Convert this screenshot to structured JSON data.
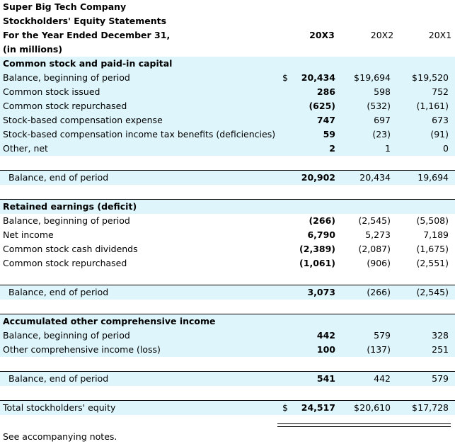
{
  "header": {
    "company": "Super Big Tech Company",
    "statement": "Stockholders' Equity Statements",
    "period": "For the Year Ended December 31,",
    "units": "(in millions)",
    "years": [
      "20X3",
      "20X2",
      "20X1"
    ]
  },
  "currency_symbol": "$",
  "common": {
    "title": "Common stock and paid-in capital",
    "rows": [
      {
        "label": "Balance, beginning of period",
        "v1": "20,434",
        "v2": "19,694",
        "v3": "19,520"
      },
      {
        "label": "Common stock issued",
        "v1": "286",
        "v2": "598",
        "v3": "752"
      },
      {
        "label": "Common stock repurchased",
        "v1": "(625)",
        "v2": "(532)",
        "v3": "(1,161)"
      },
      {
        "label": "Stock-based compensation expense",
        "v1": "747",
        "v2": "697",
        "v3": "673"
      },
      {
        "label": "Stock-based compensation income tax benefits (deficiencies)",
        "v1": "59",
        "v2": "(23)",
        "v3": "(91)"
      },
      {
        "label": "Other, net",
        "v1": "2",
        "v2": "1",
        "v3": "0"
      }
    ],
    "end": {
      "label": "Balance, end of period",
      "v1": "20,902",
      "v2": "20,434",
      "v3": "19,694"
    }
  },
  "retained": {
    "title": "Retained earnings (deficit)",
    "rows": [
      {
        "label": "Balance, beginning of period",
        "v1": "(266)",
        "v2": "(2,545)",
        "v3": "(5,508)"
      },
      {
        "label": "Net income",
        "v1": "6,790",
        "v2": "5,273",
        "v3": "7,189"
      },
      {
        "label": "Common stock cash dividends",
        "v1": "(2,389)",
        "v2": "(2,087)",
        "v3": "(1,675)"
      },
      {
        "label": "Common stock repurchased",
        "v1": "(1,061)",
        "v2": "(906)",
        "v3": "(2,551)"
      }
    ],
    "end": {
      "label": "Balance, end of period",
      "v1": "3,073",
      "v2": "(266)",
      "v3": "(2,545)"
    }
  },
  "aoci": {
    "title": "Accumulated other comprehensive income",
    "rows": [
      {
        "label": "Balance, beginning of period",
        "v1": "442",
        "v2": "579",
        "v3": "328"
      },
      {
        "label": "Other comprehensive income (loss)",
        "v1": "100",
        "v2": "(137)",
        "v3": "251"
      }
    ],
    "end": {
      "label": "Balance, end of period",
      "v1": "541",
      "v2": "442",
      "v3": "579"
    }
  },
  "total": {
    "label": "Total stockholders' equity",
    "v1": "24,517",
    "v2": "20,610",
    "v3": "17,728"
  },
  "footer": "See accompanying notes."
}
